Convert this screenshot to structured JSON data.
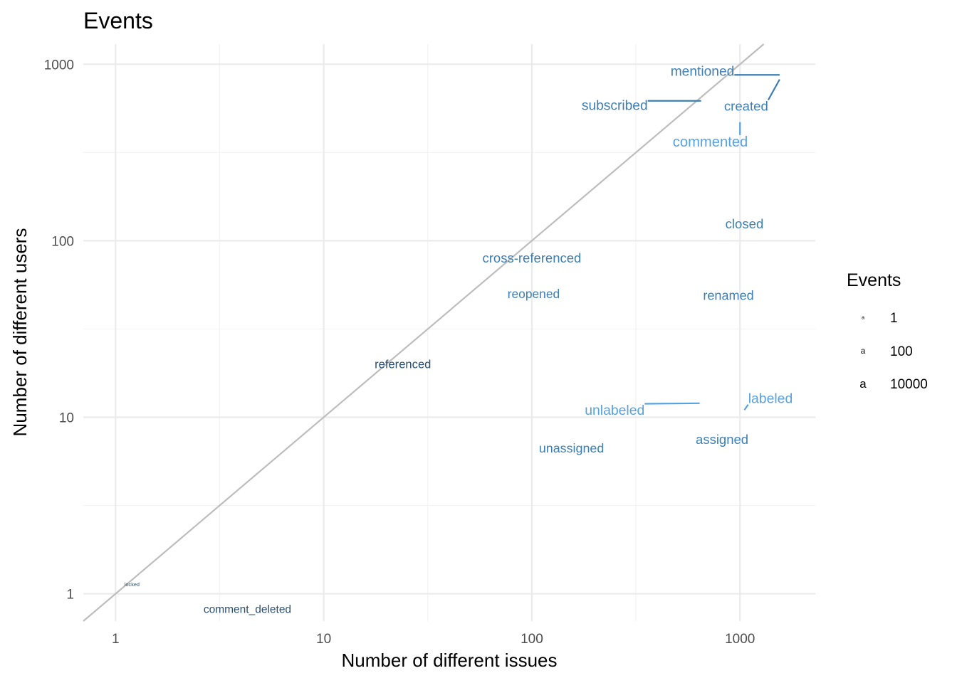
{
  "chart_data": {
    "type": "scatter",
    "title": "Events",
    "xlabel": "Number of different issues",
    "ylabel": "Number of different users",
    "x_scale": "log10",
    "y_scale": "log10",
    "xlim": [
      0.7,
      2300
    ],
    "ylim": [
      0.7,
      1300
    ],
    "x_ticks": [
      1,
      10,
      100,
      1000
    ],
    "x_tick_labels": [
      "1",
      "10",
      "100",
      "1000"
    ],
    "y_ticks": [
      1,
      10,
      100,
      1000
    ],
    "y_tick_labels": [
      "1",
      "10",
      "100",
      "1000"
    ],
    "reference_line": "y = x",
    "grid": true,
    "points": [
      {
        "label": "mentioned",
        "x": 1550,
        "y": 870,
        "label_x": 660,
        "label_y": 915,
        "count": 80000,
        "color": "#3d7fb3"
      },
      {
        "label": "subscribed",
        "x": 650,
        "y": 620,
        "label_x": 250,
        "label_y": 585,
        "count": 75000,
        "color": "#3d7fb3"
      },
      {
        "label": "created",
        "x": 1550,
        "y": 820,
        "label_x": 1070,
        "label_y": 580,
        "count": 45000,
        "color": "#3d7fb3"
      },
      {
        "label": "commented",
        "x": 1000,
        "y": 470,
        "label_x": 720,
        "label_y": 365,
        "count": 180000,
        "color": "#56a3e0"
      },
      {
        "label": "closed",
        "x": 1050,
        "y": 125,
        "label_x": 1050,
        "label_y": 125,
        "count": 45000,
        "color": "#3d7fb3"
      },
      {
        "label": "cross-referenced",
        "x": 100,
        "y": 80,
        "label_x": 100,
        "label_y": 80,
        "count": 40000,
        "color": "#3d7fb3"
      },
      {
        "label": "reopened",
        "x": 102,
        "y": 50,
        "label_x": 102,
        "label_y": 50,
        "count": 15000,
        "color": "#3d7fb3"
      },
      {
        "label": "renamed",
        "x": 880,
        "y": 49,
        "label_x": 880,
        "label_y": 49,
        "count": 30000,
        "color": "#3d7fb3"
      },
      {
        "label": "referenced",
        "x": 24,
        "y": 20,
        "label_x": 24,
        "label_y": 20,
        "count": 8000,
        "color": "#2a4f73"
      },
      {
        "label": "labeled",
        "x": 1050,
        "y": 11,
        "label_x": 1400,
        "label_y": 12.8,
        "count": 90000,
        "color": "#56a3e0"
      },
      {
        "label": "unlabeled",
        "x": 640,
        "y": 12,
        "label_x": 250,
        "label_y": 11,
        "count": 90000,
        "color": "#56a3e0"
      },
      {
        "label": "assigned",
        "x": 820,
        "y": 7.5,
        "label_x": 820,
        "label_y": 7.5,
        "count": 40000,
        "color": "#3d7fb3"
      },
      {
        "label": "unassigned",
        "x": 155,
        "y": 6.7,
        "label_x": 155,
        "label_y": 6.7,
        "count": 25000,
        "color": "#3d7fb3"
      },
      {
        "label": "locked",
        "x": 1.2,
        "y": 1.13,
        "label_x": 1.2,
        "label_y": 1.13,
        "count": 1,
        "color": "#2a4f73"
      },
      {
        "label": "comment_deleted",
        "x": 4.3,
        "y": 0.82,
        "label_x": 4.3,
        "label_y": 0.82,
        "count": 3000,
        "color": "#2a4f73"
      }
    ],
    "legend": {
      "title": "Events",
      "position": "right",
      "glyph": "a",
      "entries": [
        {
          "label": "1",
          "count": 1
        },
        {
          "label": "100",
          "count": 100
        },
        {
          "label": "10000",
          "count": 10000
        }
      ]
    }
  }
}
